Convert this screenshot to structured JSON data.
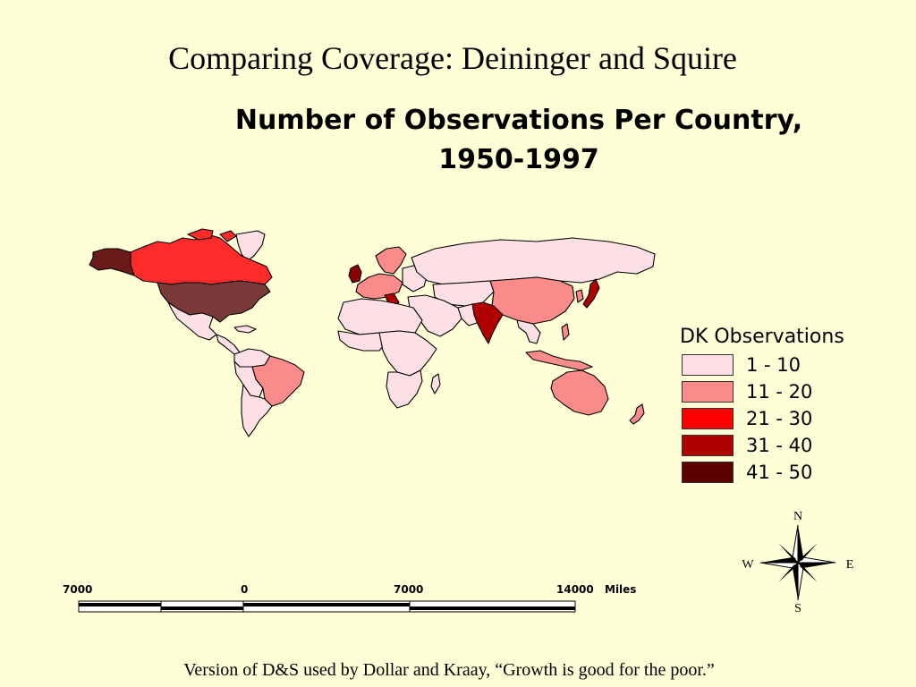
{
  "slide": {
    "title": "Comparing Coverage: Deininger and Squire",
    "footer": "Version of D&S used by Dollar and Kraay, “Growth is good for the poor.”"
  },
  "map": {
    "title_line1": "Number of Observations Per Country,",
    "title_line2": "1950-1997"
  },
  "legend": {
    "title": "DK Observations",
    "items": [
      {
        "label": "1 - 10",
        "color": "#fde0e4"
      },
      {
        "label": "11 - 20",
        "color": "#f98b8b"
      },
      {
        "label": "21 - 30",
        "color": "#ff0000"
      },
      {
        "label": "31 - 40",
        "color": "#b00000"
      },
      {
        "label": "41 - 50",
        "color": "#5c0000"
      }
    ]
  },
  "compass": {
    "n": "N",
    "s": "S",
    "e": "E",
    "w": "W"
  },
  "scale": {
    "labels": [
      "7000",
      "0",
      "7000",
      "14000"
    ],
    "unit": "Miles"
  },
  "colors": {
    "background": "#ffffd7",
    "land_nodata": "#ffffff",
    "border": "#000000"
  }
}
